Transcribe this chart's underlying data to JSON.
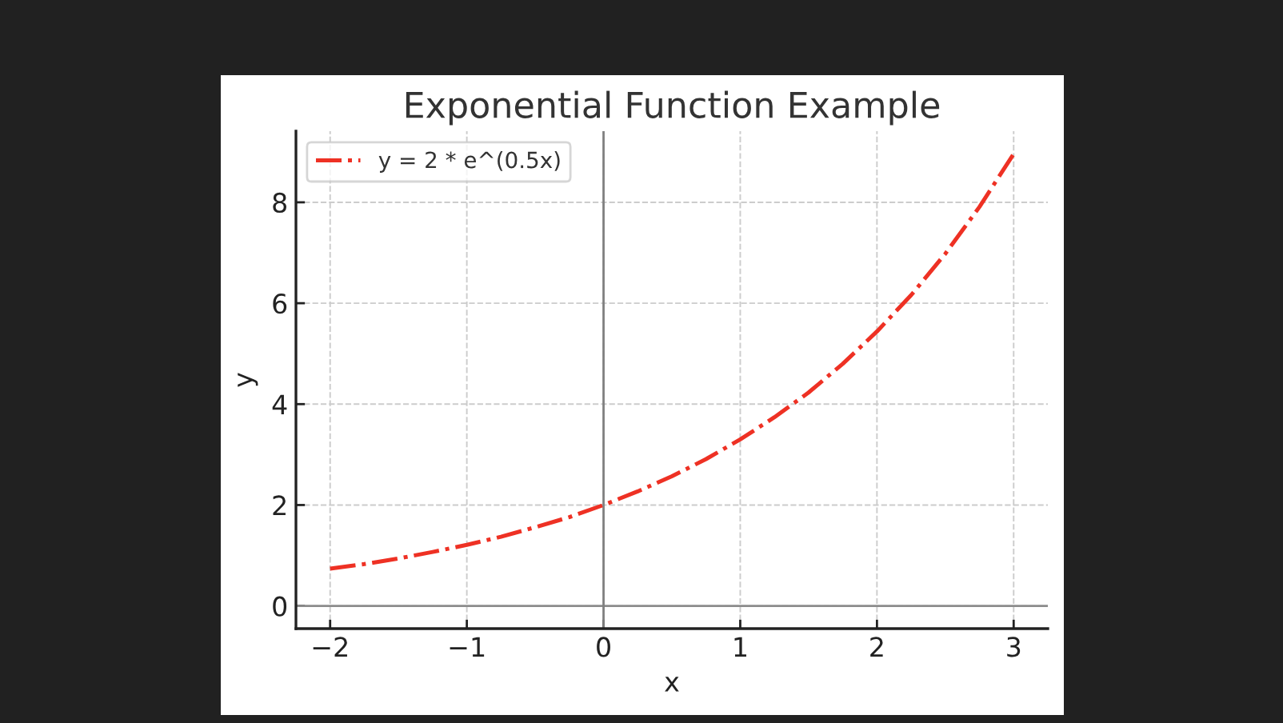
{
  "chart_data": {
    "type": "line",
    "title": "Exponential Function Example",
    "xlabel": "x",
    "ylabel": "y",
    "series": [
      {
        "name": "y = 2 * e^(0.5x)",
        "color": "#ee3124",
        "line_style": "dashdot",
        "x": [
          -2,
          -1.75,
          -1.5,
          -1.25,
          -1,
          -0.75,
          -0.5,
          -0.25,
          0,
          0.25,
          0.5,
          0.75,
          1,
          1.25,
          1.5,
          1.75,
          2,
          2.25,
          2.5,
          2.75,
          3
        ],
        "values": [
          0.74,
          0.83,
          0.94,
          1.07,
          1.21,
          1.37,
          1.56,
          1.76,
          2.0,
          2.27,
          2.57,
          2.91,
          3.3,
          3.74,
          4.23,
          4.8,
          5.44,
          6.16,
          6.98,
          7.91,
          8.96
        ]
      }
    ],
    "xlim": [
      -2.25,
      3.25
    ],
    "ylim": [
      -0.45,
      9.41
    ],
    "xticks": [
      {
        "value": -2,
        "label": "−2"
      },
      {
        "value": -1,
        "label": "−1"
      },
      0,
      1,
      2,
      3
    ],
    "yticks": [
      0,
      2,
      4,
      6,
      8
    ],
    "ref_lines": [
      {
        "axis": "y",
        "value": 0,
        "color": "#8c8c8c"
      },
      {
        "axis": "x",
        "value": 0,
        "color": "#808080"
      }
    ],
    "grid": true,
    "legend": "top left",
    "marker": "none"
  }
}
